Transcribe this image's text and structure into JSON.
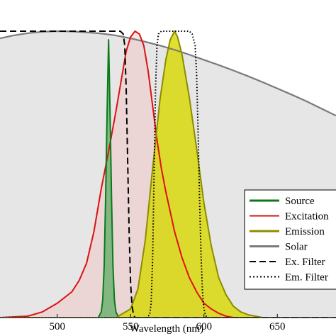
{
  "chart_data": {
    "type": "area",
    "xlabel": "Wavelength (nm)",
    "ylabel": "",
    "title": "",
    "xlim": [
      461,
      690
    ],
    "ylim": [
      0,
      1
    ],
    "grid": false,
    "legend_position": "bottom-right",
    "x_ticks": [
      500,
      550,
      600,
      650
    ],
    "x_tick_labels": [
      "500",
      "550",
      "600",
      "650"
    ],
    "series": [
      {
        "name": "Source",
        "key": "source",
        "style": "solid",
        "line_color": "#0a7a1a",
        "fill_color": "#2e9e3c",
        "fill_opacity": 0.55,
        "x": [
          461,
          528,
          530,
          531,
          532,
          533,
          534,
          535,
          536,
          537,
          538,
          539,
          540,
          542,
          690
        ],
        "y": [
          0,
          0,
          0.02,
          0.06,
          0.18,
          0.42,
          0.72,
          0.97,
          0.72,
          0.42,
          0.18,
          0.06,
          0.02,
          0,
          0
        ]
      },
      {
        "name": "Excitation",
        "key": "excitation",
        "style": "solid",
        "line_color": "#dd1111",
        "fill_color": "#f3c0c0",
        "fill_opacity": 0.45,
        "x": [
          461,
          480,
          490,
          500,
          510,
          515,
          520,
          525,
          530,
          535,
          540,
          544,
          547,
          550,
          553,
          556,
          559,
          562,
          565,
          568,
          571,
          574,
          577,
          580,
          585,
          590,
          595,
          600,
          605,
          610,
          615,
          620,
          690
        ],
        "y": [
          0,
          0.005,
          0.02,
          0.05,
          0.09,
          0.13,
          0.19,
          0.3,
          0.45,
          0.58,
          0.72,
          0.84,
          0.93,
          0.98,
          1.0,
          0.99,
          0.95,
          0.86,
          0.74,
          0.62,
          0.52,
          0.44,
          0.37,
          0.3,
          0.21,
          0.14,
          0.09,
          0.05,
          0.03,
          0.015,
          0.005,
          0,
          0
        ]
      },
      {
        "name": "Emission",
        "key": "emission",
        "style": "solid",
        "line_color": "#8c8c00",
        "fill_color": "#d8d800",
        "fill_opacity": 0.8,
        "x": [
          461,
          540,
          550,
          555,
          560,
          565,
          570,
          574,
          577,
          580,
          582,
          585,
          590,
          595,
          600,
          605,
          610,
          615,
          620,
          625,
          630,
          640,
          690
        ],
        "y": [
          0,
          0,
          0.03,
          0.1,
          0.27,
          0.52,
          0.76,
          0.9,
          0.97,
          1.0,
          0.98,
          0.92,
          0.77,
          0.59,
          0.4,
          0.25,
          0.14,
          0.08,
          0.04,
          0.02,
          0.01,
          0,
          0
        ]
      },
      {
        "name": "Solar",
        "key": "solar",
        "style": "solid",
        "line_color": "#7a7a7a",
        "fill_color": "#d2d2d2",
        "fill_opacity": 0.55,
        "x": [
          461,
          470,
          480,
          490,
          500,
          510,
          520,
          530,
          540,
          550,
          560,
          570,
          580,
          590,
          600,
          610,
          620,
          630,
          640,
          650,
          660,
          670,
          680,
          690
        ],
        "y": [
          0.975,
          0.985,
          0.993,
          0.998,
          1.0,
          0.999,
          0.996,
          0.992,
          0.985,
          0.975,
          0.963,
          0.95,
          0.935,
          0.918,
          0.9,
          0.882,
          0.863,
          0.843,
          0.822,
          0.8,
          0.778,
          0.755,
          0.73,
          0.705
        ]
      },
      {
        "name": "Ex. Filter",
        "key": "ex_filter",
        "style": "dashed",
        "line_color": "#000000",
        "fill_color": "none",
        "fill_opacity": 0,
        "x": [
          461,
          540,
          543,
          545,
          546,
          547,
          548,
          549,
          550,
          551,
          552,
          553,
          554,
          556,
          690
        ],
        "y": [
          1.0,
          1.0,
          1.0,
          0.99,
          0.95,
          0.8,
          0.55,
          0.3,
          0.12,
          0.04,
          0.01,
          0,
          0,
          0,
          0
        ]
      },
      {
        "name": "Em. Filter",
        "key": "em_filter",
        "style": "dotted",
        "line_color": "#000000",
        "fill_color": "none",
        "fill_opacity": 0,
        "x": [
          461,
          561,
          563,
          564,
          565,
          566,
          567,
          568,
          569,
          571,
          590,
          592,
          594,
          595,
          596,
          597,
          598,
          599,
          600,
          601,
          602,
          604,
          690
        ],
        "y": [
          0,
          0,
          0.01,
          0.05,
          0.2,
          0.5,
          0.8,
          0.95,
          0.99,
          1.0,
          1.0,
          0.99,
          0.95,
          0.85,
          0.65,
          0.42,
          0.22,
          0.09,
          0.03,
          0.01,
          0,
          0,
          0
        ]
      }
    ],
    "legend_order": [
      "source",
      "excitation",
      "emission",
      "solar",
      "ex_filter",
      "em_filter"
    ]
  }
}
